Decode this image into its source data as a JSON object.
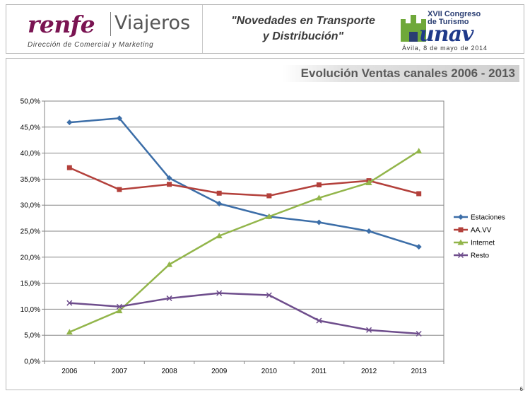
{
  "header": {
    "brand": "renfe",
    "brand_sub": "Viajeros",
    "brand_tagline": "Dirección de Comercial y Marketing",
    "center_title_line1": "\"Novedades en Transporte",
    "center_title_line2": "y Distribución\"",
    "event_top": "XVII Congreso de Turismo",
    "event_mark": "unav",
    "event_date": "Ávila, 8 de mayo de 2014"
  },
  "page_number": "6",
  "colors": {
    "estaciones": "#3c6ea8",
    "aavv": "#b3403b",
    "internet": "#92b54a",
    "resto": "#6e4d8c",
    "grid": "#868686"
  },
  "chart_data": {
    "type": "line",
    "title": "Evolución Ventas canales  2006 - 2013",
    "x": [
      "2006",
      "2007",
      "2008",
      "2009",
      "2010",
      "2011",
      "2012",
      "2013"
    ],
    "ylim": [
      0,
      50
    ],
    "yticks": [
      "0,0%",
      "5,0%",
      "10,0%",
      "15,0%",
      "20,0%",
      "25,0%",
      "30,0%",
      "35,0%",
      "40,0%",
      "45,0%",
      "50,0%"
    ],
    "grid": true,
    "legend_position": "right",
    "series": [
      {
        "name": "Estaciones",
        "marker": "diamond",
        "values": [
          45.9,
          46.7,
          35.2,
          30.3,
          27.8,
          26.7,
          25.0,
          22.0
        ]
      },
      {
        "name": "AA.VV",
        "marker": "square",
        "values": [
          37.2,
          33.0,
          34.0,
          32.3,
          31.8,
          33.9,
          34.7,
          32.2
        ]
      },
      {
        "name": "Internet",
        "marker": "triangle",
        "values": [
          5.6,
          9.7,
          18.6,
          24.1,
          27.8,
          31.4,
          34.3,
          40.4
        ]
      },
      {
        "name": "Resto",
        "marker": "x",
        "values": [
          11.2,
          10.5,
          12.1,
          13.1,
          12.7,
          7.8,
          6.0,
          5.3
        ]
      }
    ]
  }
}
